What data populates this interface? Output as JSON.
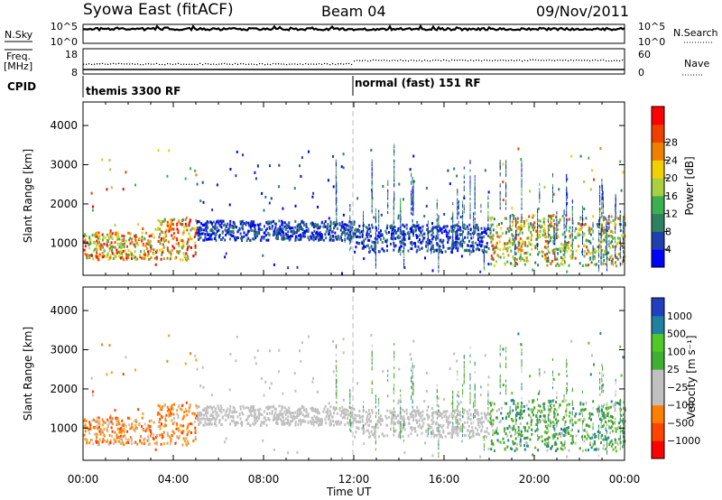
{
  "header": {
    "title": "Syowa East (fitACF)",
    "beam": "Beam 04",
    "date": "09/Nov/2011"
  },
  "nsky_panel": {
    "left_label": "N.Sky",
    "left_ticks": [
      "10^5",
      "10^0"
    ],
    "right_ticks": [
      "10^5",
      "10^0"
    ],
    "right_label": "N.Search"
  },
  "freq_panel": {
    "left_label": "Freq.",
    "left_unit": "[MHz]",
    "left_ticks": [
      "18",
      "8"
    ],
    "right_ticks": [
      "60",
      "0"
    ],
    "right_label": "Nave"
  },
  "cpid": {
    "label": "CPID",
    "modes": [
      {
        "name": "themis 3300 RF",
        "start_hour": 0
      },
      {
        "name": "normal (fast) 151 RF",
        "start_hour": 12
      }
    ]
  },
  "colors": {
    "power": [
      "#0000ff",
      "#2040b0",
      "#2e8060",
      "#3cb050",
      "#a8d040",
      "#f0d000",
      "#f08000",
      "#f04000",
      "#ff0000"
    ],
    "velocity": [
      "#ff0000",
      "#ff4000",
      "#ff8000",
      "#ffa020",
      "#c0c0c0",
      "#c0c0c0",
      "#40a030",
      "#60c020",
      "#208090",
      "#2040c0",
      "#1e40b0"
    ]
  },
  "chart_data": [
    {
      "type": "heatmap",
      "panel": "power",
      "ylabel": "Slant Range [km]",
      "xlabel": "Time UT",
      "x_ticks": [
        "00:00",
        "04:00",
        "08:00",
        "12:00",
        "16:00",
        "20:00",
        "00:00"
      ],
      "xlim_hours": [
        0,
        24
      ],
      "ylim": [
        180,
        4600
      ],
      "y_ticks": [
        1000,
        2000,
        3000,
        4000
      ],
      "colorbar": {
        "label": "Power [dB]",
        "ticks": [
          "4",
          "8",
          "12",
          "16",
          "20",
          "24",
          "28"
        ],
        "range": [
          0,
          30
        ]
      }
    },
    {
      "type": "heatmap",
      "panel": "velocity",
      "ylabel": "Slant Range [km]",
      "xlabel": "Time UT",
      "x_ticks": [
        "00:00",
        "04:00",
        "08:00",
        "12:00",
        "16:00",
        "20:00",
        "00:00"
      ],
      "xlim_hours": [
        0,
        24
      ],
      "ylim": [
        180,
        4600
      ],
      "y_ticks": [
        1000,
        2000,
        3000,
        4000
      ],
      "colorbar": {
        "label": "Velocity [m s⁻¹]",
        "ticks": [
          "1000",
          "500",
          "100",
          "25",
          "−25",
          "−100",
          "−500",
          "−1000"
        ]
      }
    }
  ]
}
